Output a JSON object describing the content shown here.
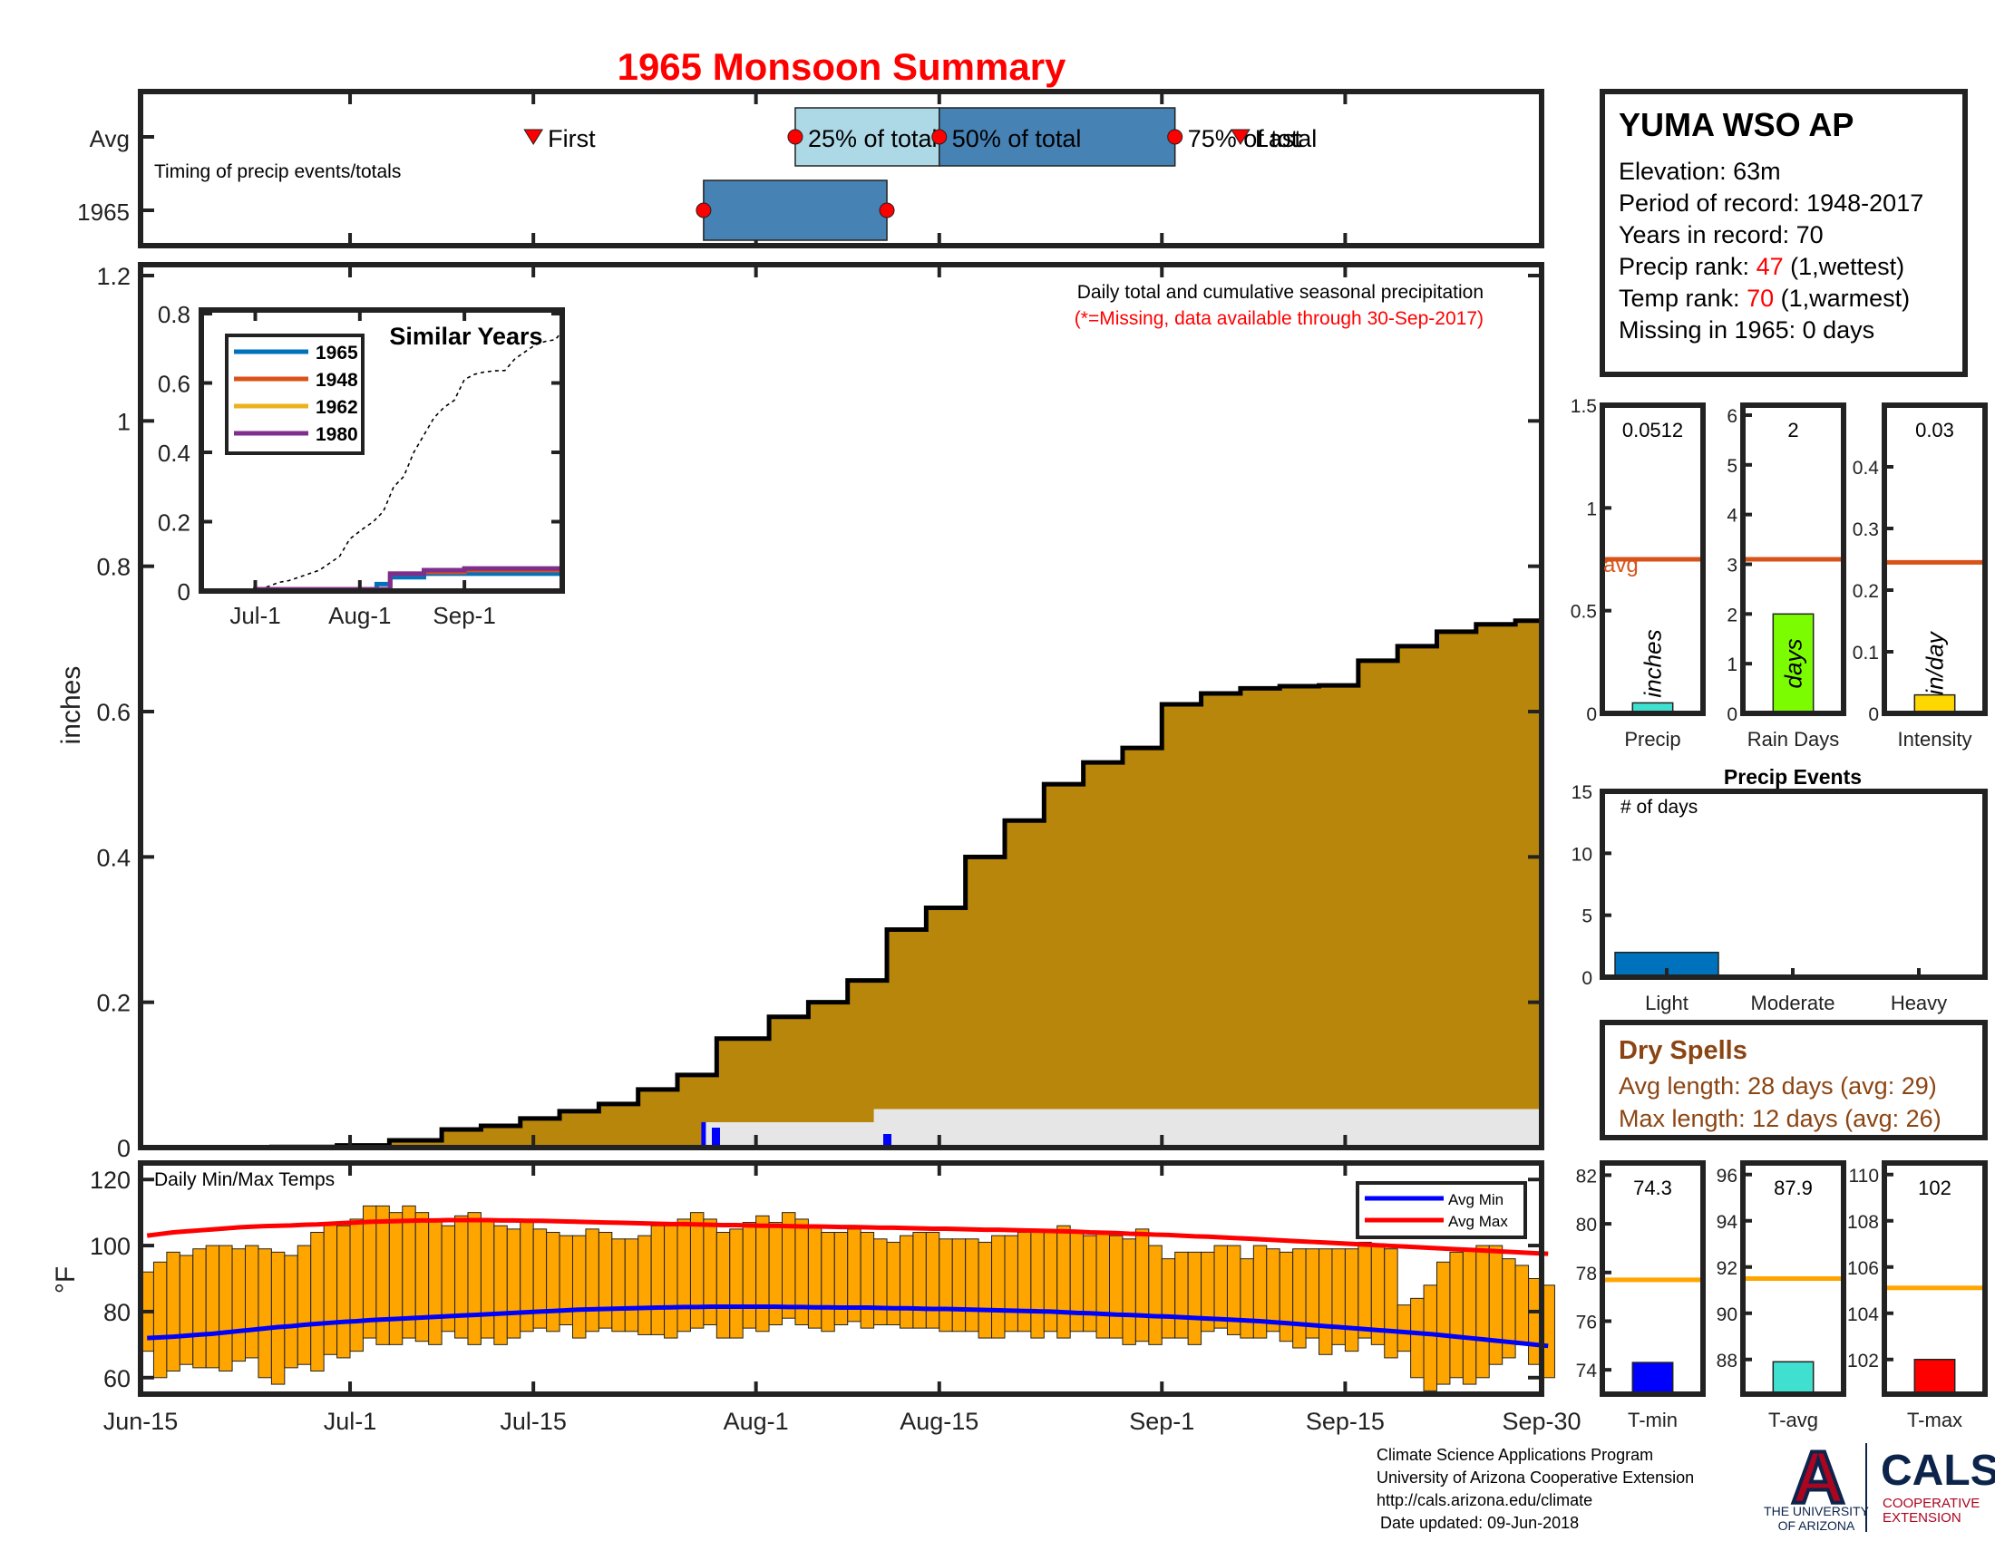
{
  "title": "1965 Monsoon Summary",
  "timing": {
    "avg_label": "Avg",
    "year_label": "1965",
    "note": "Timing of precip events/totals",
    "first_label": "First",
    "last_label": "Last",
    "p25_label": "25% of total",
    "p50_label": "50% of total",
    "p75_label": "75% of total",
    "avg_first": "2024-07-15",
    "avg_p25": "2024-08-04",
    "avg_p50": "2024-08-15",
    "avg_p75": "2024-09-02",
    "avg_last": "2024-09-07",
    "year_p25": "2024-07-28",
    "year_p75": "2024-08-11",
    "colors": {
      "box25": "#add8e6",
      "box50": "#4682b4",
      "marker": "#ff0000"
    }
  },
  "station": {
    "name": "YUMA WSO AP",
    "elevation": "Elevation: 63m",
    "period": "Period of record: 1948-2017",
    "years": "Years in record: 70",
    "precip_rank_label": "Precip rank: ",
    "precip_rank": "47",
    "precip_rank_note": " (1,wettest)",
    "temp_rank_label": "Temp rank: ",
    "temp_rank": "70",
    "temp_rank_note": " (1,warmest)",
    "missing": "Missing in 1965: 0 days"
  },
  "main": {
    "ylabel": "inches",
    "note1": "Daily total and cumulative seasonal precipitation",
    "note2": "(*=Missing, data available through 30-Sep-2017)",
    "y_ticks": [
      "0",
      "0.2",
      "0.4",
      "0.6",
      "0.8",
      "1",
      "1.2"
    ],
    "x_ticks": [
      "Jun-15",
      "Jul-1",
      "Jul-15",
      "Aug-1",
      "Aug-15",
      "Sep-1",
      "Sep-15",
      "Sep-30"
    ],
    "fill_color": "#b8860b",
    "daily_color": "#0000ff",
    "year_color": "#0000ff"
  },
  "inset": {
    "title": "Similar Years",
    "legend": [
      {
        "name": "1965",
        "color": "#0072bd"
      },
      {
        "name": "1948",
        "color": "#d95319"
      },
      {
        "name": "1962",
        "color": "#edb120"
      },
      {
        "name": "1980",
        "color": "#7e2f8e"
      }
    ],
    "y_ticks": [
      "0",
      "0.2",
      "0.4",
      "0.6",
      "0.8"
    ],
    "x_ticks": [
      "Jul-1",
      "Aug-1",
      "Sep-1"
    ]
  },
  "bars": {
    "avg_label": "avg",
    "avg_color": "#d95319",
    "precip": {
      "title": "Precip",
      "unit": "inches",
      "value": 0.0512,
      "value_text": "0.0512",
      "avg": 0.75,
      "color": "#40e0d0",
      "y_ticks": [
        "0",
        "0.5",
        "1",
        "1.5"
      ]
    },
    "rain_days": {
      "title": "Rain Days",
      "unit": "days",
      "value": 2,
      "value_text": "2",
      "avg": 3.1,
      "color": "#7cfc00",
      "y_ticks": [
        "0",
        "1",
        "2",
        "3",
        "4",
        "5",
        "6"
      ]
    },
    "intensity": {
      "title": "Intensity",
      "unit": "in/day",
      "value": 0.03,
      "value_text": "0.03",
      "avg": 0.245,
      "color": "#ffd700",
      "y_ticks": [
        "0",
        "0.1",
        "0.2",
        "0.3",
        "0.4"
      ]
    }
  },
  "events": {
    "title": "Precip Events",
    "ylabel": "# of days",
    "categories": [
      "Light",
      "Moderate",
      "Heavy"
    ],
    "values": [
      2,
      0,
      0
    ],
    "y_ticks": [
      "0",
      "5",
      "10",
      "15"
    ],
    "color": "#0072bd"
  },
  "dry_spells": {
    "title": "Dry Spells",
    "avg_length": "Avg length: 28 days (avg: 29)",
    "max_length": "Max length: 12 days (avg: 26)",
    "color": "#8b4513"
  },
  "temps": {
    "title": "Daily Min/Max Temps",
    "ylabel": "°F",
    "legend_min": "Avg Min",
    "legend_max": "Avg Max",
    "y_ticks": [
      "60",
      "80",
      "100",
      "120"
    ],
    "bar_color": "#ffa500",
    "min_color": "#0000ff",
    "max_color": "#ff0000"
  },
  "temp_boxes": {
    "avg_color": "#ffa500",
    "tmin": {
      "title": "T-min",
      "value": 74.3,
      "value_text": "74.3",
      "avg": 77.7,
      "color": "#0000ff",
      "y_ticks": [
        "74",
        "76",
        "78",
        "80",
        "82"
      ]
    },
    "tavg": {
      "title": "T-avg",
      "value": 87.9,
      "value_text": "87.9",
      "avg": 91.5,
      "color": "#40e0d0",
      "y_ticks": [
        "88",
        "90",
        "92",
        "94",
        "96"
      ]
    },
    "tmax": {
      "title": "T-max",
      "value": 102,
      "value_text": "102",
      "avg": 105.1,
      "color": "#ff0000",
      "y_ticks": [
        "102",
        "104",
        "106",
        "108",
        "110"
      ]
    }
  },
  "footer": {
    "line1": "Climate Science Applications Program",
    "line2": "University of Arizona Cooperative Extension",
    "line3": "http://cals.arizona.edu/climate",
    "line4": "Date updated: 09-Jun-2018"
  },
  "logo": {
    "letter": "A",
    "univ1": "THE UNIVERSITY",
    "univ2": "OF ARIZONA",
    "cals": "CALS",
    "coop1": "COOPERATIVE",
    "coop2": "EXTENSION",
    "navy": "#0c234b",
    "red": "#ab0520"
  },
  "chart_data": [
    {
      "type": "area",
      "title": "1965 Monsoon Summary",
      "ylabel": "inches",
      "ylim": [
        0,
        1.2
      ],
      "series": [
        {
          "name": "cumulative",
          "x": [
            "2024-06-15",
            "2024-06-20",
            "2024-06-25",
            "2024-06-30",
            "2024-07-04",
            "2024-07-08",
            "2024-07-11",
            "2024-07-14",
            "2024-07-17",
            "2024-07-20",
            "2024-07-23",
            "2024-07-26",
            "2024-07-29",
            "2024-08-02",
            "2024-08-05",
            "2024-08-08",
            "2024-08-11",
            "2024-08-14",
            "2024-08-17",
            "2024-08-20",
            "2024-08-23",
            "2024-08-26",
            "2024-08-29",
            "2024-09-01",
            "2024-09-04",
            "2024-09-07",
            "2024-09-10",
            "2024-09-13",
            "2024-09-16",
            "2024-09-19",
            "2024-09-22",
            "2024-09-25",
            "2024-09-28",
            "2024-09-30"
          ],
          "values": [
            0,
            0,
            0.001,
            0.003,
            0.01,
            0.025,
            0.03,
            0.04,
            0.05,
            0.06,
            0.08,
            0.1,
            0.15,
            0.18,
            0.2,
            0.23,
            0.3,
            0.33,
            0.4,
            0.45,
            0.5,
            0.53,
            0.55,
            0.61,
            0.625,
            0.632,
            0.635,
            0.636,
            0.67,
            0.69,
            0.71,
            0.72,
            0.725,
            0.75
          ]
        },
        {
          "name": "1965 daily/cumulative",
          "x": [
            "2024-06-15",
            "2024-07-28",
            "2024-08-10",
            "2024-09-30"
          ],
          "values": [
            0,
            0.035,
            0.053,
            0.053
          ]
        }
      ]
    },
    {
      "type": "line",
      "title": "Similar Years",
      "x": [
        "2024-06-15",
        "2024-07-01",
        "2024-07-15",
        "2024-08-01",
        "2024-08-06",
        "2024-08-10",
        "2024-08-20",
        "2024-09-01",
        "2024-09-15",
        "2024-09-30"
      ],
      "ylim": [
        0,
        0.8
      ],
      "series": [
        {
          "name": "1965",
          "values": [
            0,
            0,
            0,
            0,
            0.02,
            0.04,
            0.05,
            0.05,
            0.05,
            0.05
          ]
        },
        {
          "name": "1948",
          "values": [
            0,
            0.005,
            0.005,
            0.005,
            0.005,
            0.05,
            0.055,
            0.06,
            0.06,
            0.06
          ]
        },
        {
          "name": "1962",
          "values": [
            0,
            0,
            0,
            0,
            0,
            0,
            0,
            0,
            0,
            0
          ]
        },
        {
          "name": "1980",
          "values": [
            0,
            0.005,
            0.005,
            0.005,
            0.005,
            0.05,
            0.06,
            0.065,
            0.065,
            0.065
          ]
        }
      ]
    },
    {
      "type": "bar",
      "categories": [
        "Precip",
        "Rain Days",
        "Intensity"
      ],
      "values": [
        0.0512,
        2,
        0.03
      ],
      "avg": [
        0.75,
        3.1,
        0.245
      ]
    },
    {
      "type": "bar",
      "title": "Precip Events",
      "ylabel": "# of days",
      "categories": [
        "Light",
        "Moderate",
        "Heavy"
      ],
      "values": [
        2,
        0,
        0
      ],
      "ylim": [
        0,
        15
      ]
    },
    {
      "type": "bar",
      "title": "Daily Min/Max Temps",
      "ylabel": "°F",
      "ylim": [
        55,
        125
      ],
      "x_range": [
        "2024-06-15",
        "2024-09-30"
      ],
      "series": [
        {
          "name": "daily min",
          "values": [
            68,
            60,
            62,
            64,
            63,
            63,
            62,
            65,
            66,
            60,
            58,
            63,
            64,
            62,
            67,
            66,
            68,
            72,
            70,
            70,
            72,
            71,
            70,
            74,
            72,
            70,
            72,
            70,
            72,
            74,
            75,
            74,
            76,
            72,
            74,
            75,
            74,
            74,
            73,
            73,
            72,
            74,
            75,
            76,
            72,
            72,
            75,
            74,
            76,
            78,
            76,
            75,
            74,
            76,
            77,
            75,
            76,
            76,
            75,
            75,
            75,
            74,
            74,
            74,
            72,
            72,
            74,
            74,
            72,
            74,
            72,
            74,
            74,
            72,
            72,
            70,
            71,
            70,
            72,
            72,
            70,
            74,
            75,
            73,
            72,
            72,
            74,
            71,
            69,
            72,
            67,
            70,
            68,
            72,
            70,
            66,
            68,
            60,
            56,
            58,
            60,
            58,
            60,
            64,
            66,
            70,
            64,
            60
          ]
        },
        {
          "name": "daily max",
          "values": [
            92,
            95,
            98,
            97,
            99,
            100,
            100,
            99,
            100,
            99,
            98,
            97,
            100,
            104,
            107,
            106,
            108,
            112,
            112,
            110,
            112,
            110,
            108,
            106,
            109,
            110,
            108,
            106,
            105,
            108,
            105,
            104,
            103,
            103,
            105,
            104,
            102,
            102,
            103,
            106,
            106,
            108,
            110,
            108,
            104,
            105,
            107,
            109,
            107,
            110,
            108,
            106,
            104,
            104,
            105,
            104,
            102,
            101,
            103,
            104,
            104,
            102,
            102,
            102,
            101,
            103,
            103,
            104,
            104,
            104,
            106,
            104,
            103,
            104,
            103,
            102,
            105,
            100,
            96,
            98,
            98,
            98,
            100,
            100,
            96,
            100,
            99,
            98,
            99,
            99,
            99,
            99,
            99,
            101,
            100,
            99,
            82,
            84,
            88,
            95,
            98,
            99,
            100,
            100,
            96,
            94,
            90,
            88
          ]
        },
        {
          "name": "Avg Min",
          "values": [
            72,
            72.2,
            72.4,
            72.7,
            73,
            73.3,
            73.7,
            74.1,
            74.5,
            74.9,
            75.3,
            75.6,
            76,
            76.3,
            76.6,
            76.9,
            77.1,
            77.4,
            77.6,
            77.8,
            78,
            78.2,
            78.4,
            78.6,
            78.8,
            79,
            79.2,
            79.4,
            79.6,
            79.8,
            80,
            80.2,
            80.4,
            80.6,
            80.7,
            80.8,
            80.9,
            81,
            81.1,
            81.2,
            81.3,
            81.4,
            81.4,
            81.5,
            81.5,
            81.5,
            81.5,
            81.5,
            81.5,
            81.4,
            81.4,
            81.3,
            81.3,
            81.2,
            81.2,
            81.2,
            81.1,
            81,
            81,
            80.9,
            80.8,
            80.8,
            80.7,
            80.6,
            80.5,
            80.4,
            80.3,
            80.2,
            80.1,
            80,
            79.8,
            79.6,
            79.5,
            79.3,
            79.1,
            79,
            78.8,
            78.6,
            78.5,
            78.3,
            78.1,
            77.9,
            77.7,
            77.5,
            77.3,
            77.1,
            76.8,
            76.5,
            76.2,
            75.9,
            75.6,
            75.3,
            75,
            74.7,
            74.4,
            74.1,
            73.8,
            73.5,
            73.2,
            72.8,
            72.4,
            72,
            71.6,
            71.2,
            70.8,
            70.4,
            70,
            69.6
          ]
        },
        {
          "name": "Avg Max",
          "values": [
            103,
            103.5,
            104,
            104.3,
            104.6,
            104.9,
            105.2,
            105.5,
            105.7,
            105.9,
            106,
            106.1,
            106.3,
            106.4,
            106.6,
            106.8,
            107,
            107.2,
            107.3,
            107.4,
            107.5,
            107.6,
            107.6,
            107.7,
            107.7,
            107.7,
            107.7,
            107.6,
            107.6,
            107.5,
            107.5,
            107.4,
            107.3,
            107.2,
            107.1,
            107,
            106.9,
            106.8,
            106.7,
            106.6,
            106.5,
            106.5,
            106.4,
            106.3,
            106.2,
            106.2,
            106.1,
            106,
            106,
            105.9,
            105.8,
            105.8,
            105.7,
            105.6,
            105.6,
            105.5,
            105.4,
            105.4,
            105.3,
            105.2,
            105.1,
            105.1,
            105,
            104.9,
            104.8,
            104.8,
            104.7,
            104.6,
            104.5,
            104.4,
            104.3,
            104.2,
            104,
            103.9,
            103.8,
            103.6,
            103.5,
            103.3,
            103.2,
            103,
            102.8,
            102.7,
            102.5,
            102.3,
            102.1,
            101.9,
            101.7,
            101.5,
            101.3,
            101.1,
            100.9,
            100.7,
            100.5,
            100.3,
            100.1,
            99.9,
            99.7,
            99.5,
            99.3,
            99.1,
            98.9,
            98.7,
            98.5,
            98.3,
            98.1,
            97.9,
            97.7,
            97.5
          ]
        }
      ]
    },
    {
      "type": "bar",
      "categories": [
        "T-min",
        "T-avg",
        "T-max"
      ],
      "values": [
        74.3,
        87.9,
        102
      ],
      "avg": [
        77.7,
        91.5,
        105.1
      ]
    }
  ]
}
